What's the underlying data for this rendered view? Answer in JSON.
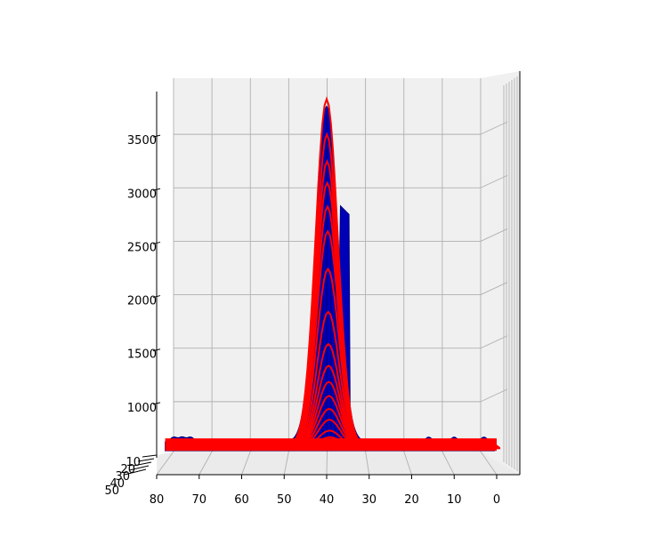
{
  "chart_data": {
    "type": "surface_3d",
    "view": "front (looking along depth axis)",
    "grid": true,
    "pane_color": "#f0f0f0",
    "colors": {
      "measured_surface": "#0000b8",
      "fit_curves": "#ff0000"
    },
    "x_axis": {
      "ticks": [
        80,
        70,
        60,
        50,
        40,
        30,
        20,
        10,
        0
      ],
      "range": [
        80,
        0
      ]
    },
    "z_axis": {
      "ticks": [
        1000,
        1500,
        2000,
        2500,
        3000,
        3500
      ],
      "range": [
        550,
        3950
      ]
    },
    "depth_axis": {
      "ticks": [
        10,
        20,
        30,
        40,
        50
      ],
      "tick_labels": [
        "10",
        "20",
        "30",
        "40",
        "50"
      ]
    },
    "baseline": 640,
    "peak_center": 40,
    "peak_width_sigma": 2.6,
    "fit_curve_peaks": [
      3880,
      3550,
      3300,
      3100,
      2880,
      2650,
      2300,
      1900,
      1600,
      1400,
      1250,
      1120,
      1000,
      900,
      800,
      740,
      700,
      670
    ],
    "measured_surface_max": 3780,
    "noise_bumps_x": [
      76,
      74,
      72,
      16,
      10,
      3
    ]
  }
}
